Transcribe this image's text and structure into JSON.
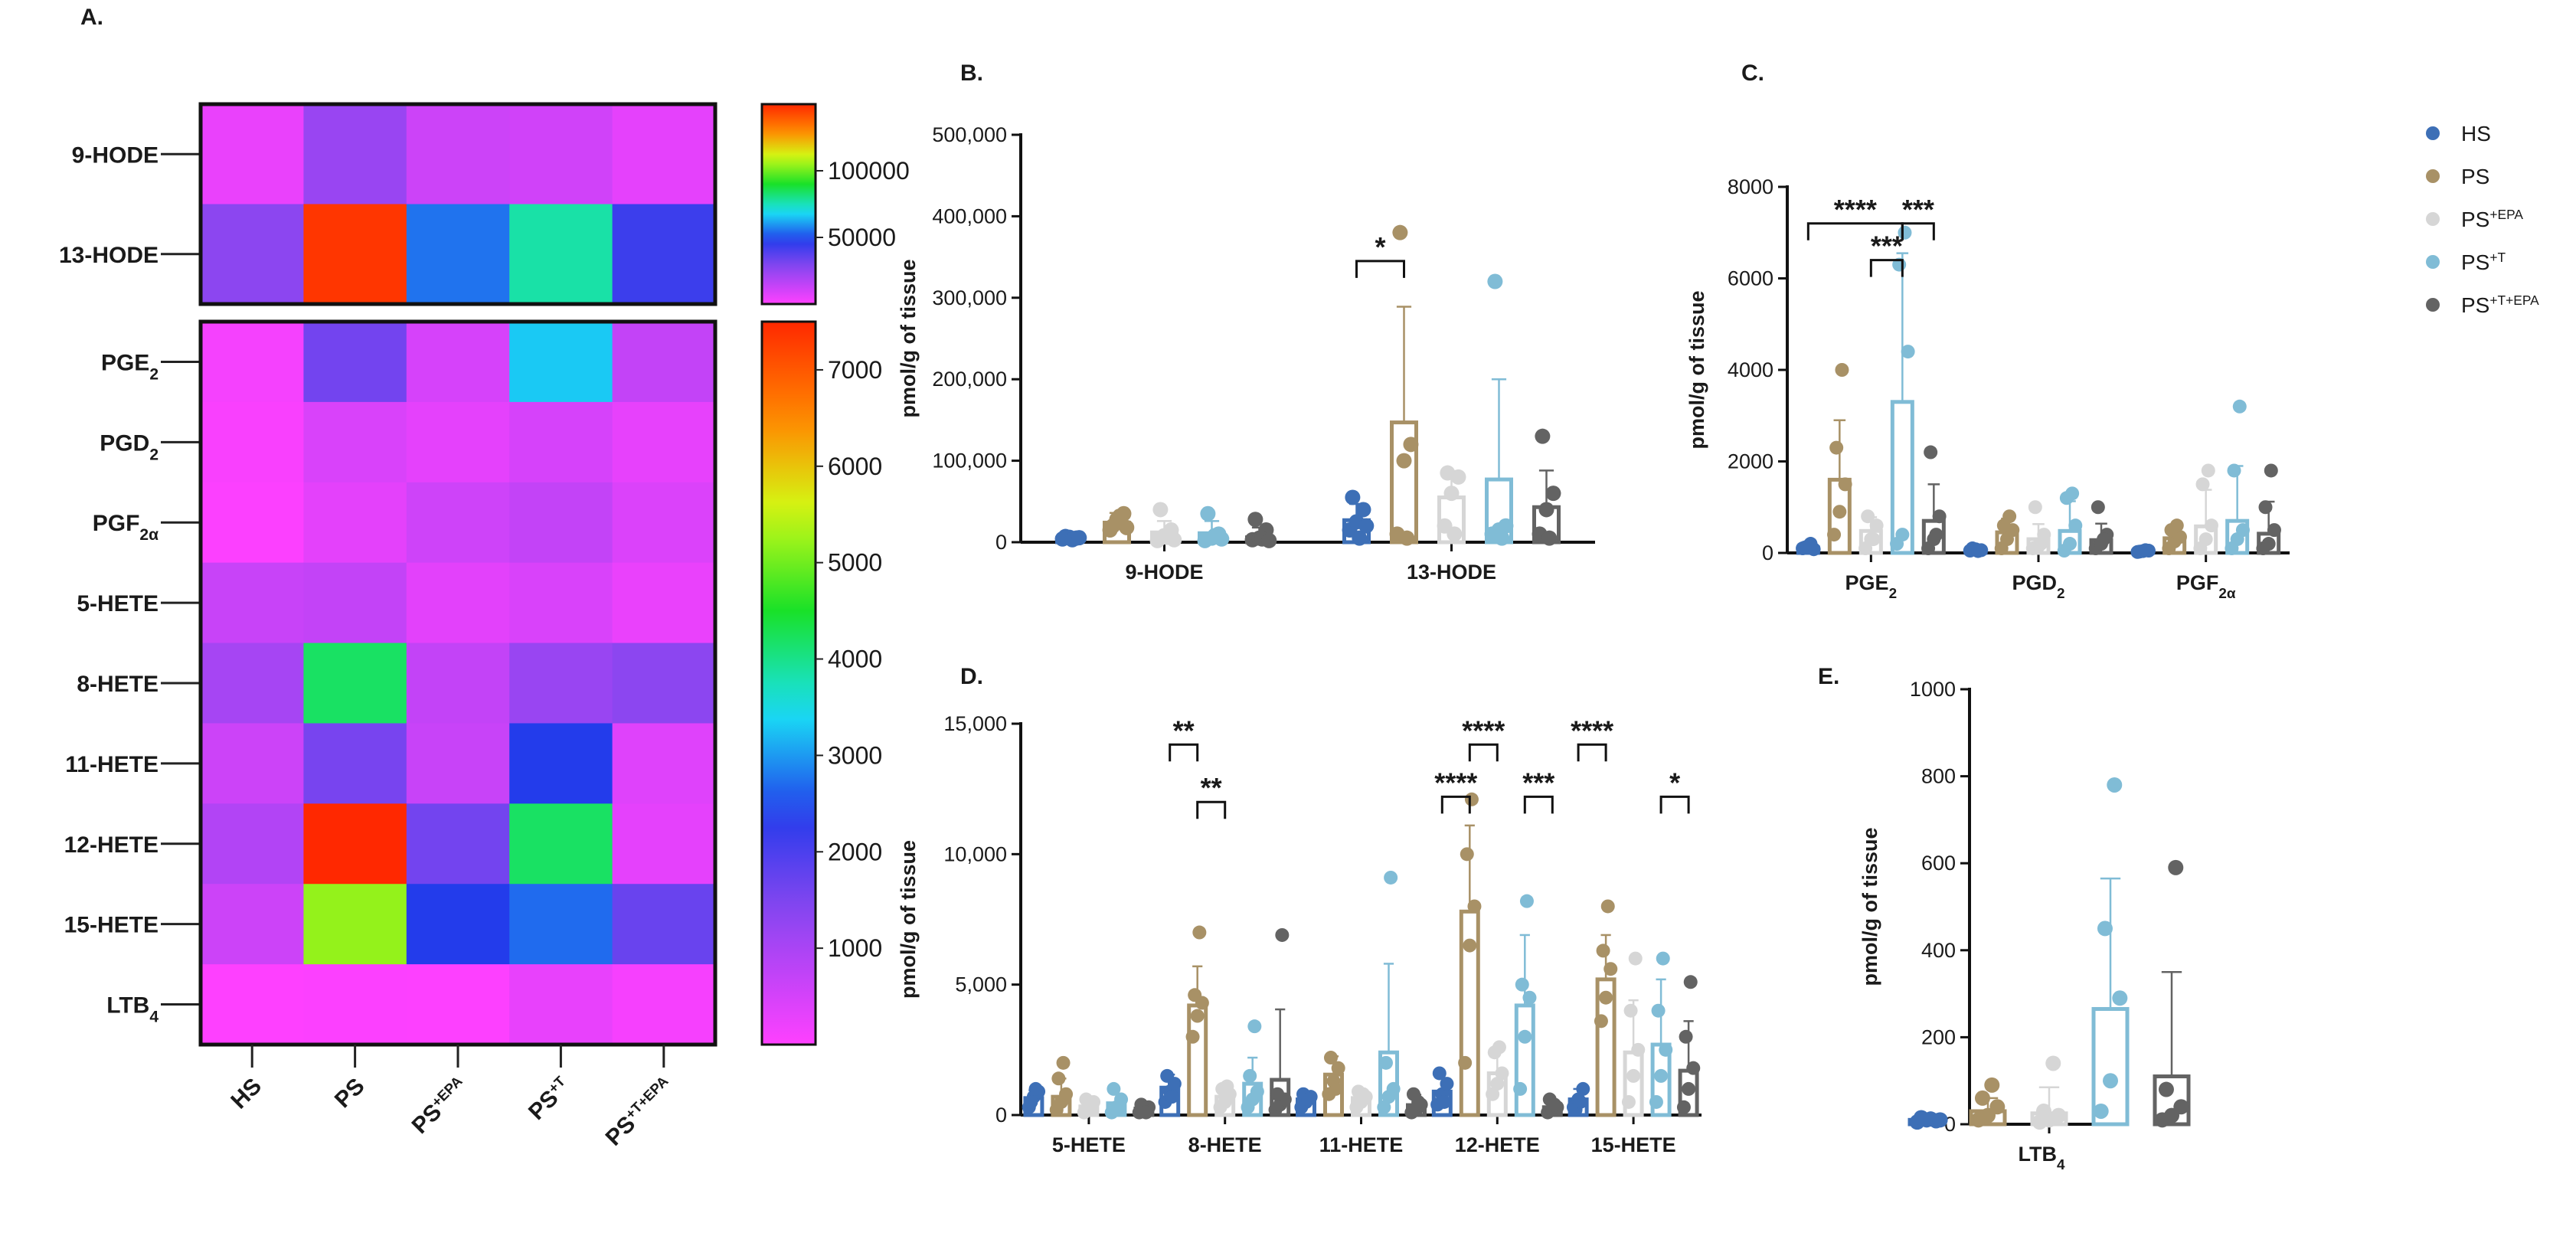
{
  "colors": {
    "HS": "#3d6fb6",
    "PS": "#a89166",
    "PS+EPA": "#d6d6d6",
    "PS+T": "#80bcd6",
    "PS+T+EPA": "#636363"
  },
  "groups": [
    {
      "key": "HS",
      "base": "HS",
      "sup": ""
    },
    {
      "key": "PS",
      "base": "PS",
      "sup": ""
    },
    {
      "key": "PS+EPA",
      "base": "PS",
      "sup": "+EPA"
    },
    {
      "key": "PS+T",
      "base": "PS",
      "sup": "+T"
    },
    {
      "key": "PS+T+EPA",
      "base": "PS",
      "sup": "+T+EPA"
    }
  ],
  "chart_data": [
    {
      "id": "A",
      "panel_label": "A.",
      "type": "heatmap",
      "columns": [
        "HS",
        "PS",
        "PS+EPA",
        "PS+T",
        "PS+T+EPA"
      ],
      "blocks": [
        {
          "rows": [
            {
              "base": "9-HODE",
              "sub": "",
              "values": [
                5000,
                24000,
                12000,
                11000,
                6000
              ]
            },
            {
              "base": "13-HODE",
              "sub": "",
              "values": [
                27000,
                147000,
                55000,
                77000,
                43000
              ]
            }
          ],
          "colorbar": {
            "min": 0,
            "max": 150000,
            "ticks": [
              {
                "value": 50000,
                "label": "50000"
              },
              {
                "value": 100000,
                "label": "100000"
              }
            ]
          }
        },
        {
          "rows": [
            {
              "base": "PGE",
              "sub": "2",
              "values": [
                120,
                1600,
                480,
                3300,
                700
              ]
            },
            {
              "base": "PGD",
              "sub": "2",
              "values": [
                70,
                450,
                300,
                480,
                280
              ]
            },
            {
              "base": "PGF",
              "sub": "2α",
              "values": [
                40,
                320,
                580,
                700,
                420
              ]
            },
            {
              "base": "5-HETE",
              "sub": "",
              "values": [
                650,
                700,
                330,
                450,
                250
              ]
            },
            {
              "base": "8-HETE",
              "sub": "",
              "values": [
                1050,
                4200,
                700,
                1200,
                1350
              ]
            },
            {
              "base": "11-HETE",
              "sub": "",
              "values": [
                600,
                1550,
                650,
                2400,
                380
              ]
            },
            {
              "base": "12-HETE",
              "sub": "",
              "values": [
                900,
                7800,
                1600,
                4200,
                300
              ]
            },
            {
              "base": "15-HETE",
              "sub": "",
              "values": [
                600,
                5200,
                2400,
                2700,
                1700
              ]
            },
            {
              "base": "LTB",
              "sub": "4",
              "values": [
                10,
                30,
                25,
                265,
                110
              ]
            }
          ],
          "colorbar": {
            "min": 0,
            "max": 7500,
            "ticks": [
              {
                "value": 1000,
                "label": "1000"
              },
              {
                "value": 2000,
                "label": "2000"
              },
              {
                "value": 3000,
                "label": "3000"
              },
              {
                "value": 4000,
                "label": "4000"
              },
              {
                "value": 5000,
                "label": "5000"
              },
              {
                "value": 6000,
                "label": "6000"
              },
              {
                "value": 7000,
                "label": "7000"
              }
            ]
          }
        }
      ]
    },
    {
      "id": "B",
      "panel_label": "B.",
      "type": "bar",
      "ylabel": "pmol/g of tissue",
      "ylim": [
        0,
        500000
      ],
      "yticks": [
        {
          "v": 0,
          "t": "0"
        },
        {
          "v": 100000,
          "t": "100,000"
        },
        {
          "v": 200000,
          "t": "200,000"
        },
        {
          "v": 300000,
          "t": "300,000"
        },
        {
          "v": 400000,
          "t": "400,000"
        },
        {
          "v": 500000,
          "t": "500,000"
        }
      ],
      "categories": [
        {
          "base": "9-HODE",
          "sub": "",
          "means": [
            5000,
            24000,
            12000,
            11000,
            6000
          ],
          "sd": [
            3000,
            12000,
            14000,
            15000,
            12000
          ],
          "points": [
            [
              4000,
              6000,
              5000,
              7000,
              3000,
              5500
            ],
            [
              15000,
              28000,
              35000,
              20000,
              32000,
              18000
            ],
            [
              2000,
              8000,
              15000,
              40000,
              6000,
              3000
            ],
            [
              2000,
              5000,
              10000,
              35000,
              8000,
              4000
            ],
            [
              3000,
              5000,
              15000,
              28000,
              4000,
              2000
            ]
          ]
        },
        {
          "base": "13-HODE",
          "sub": "",
          "means": [
            27000,
            147000,
            55000,
            77000,
            43000
          ],
          "sd": [
            20000,
            142000,
            32000,
            123000,
            45000
          ],
          "points": [
            [
              15000,
              25000,
              40000,
              55000,
              5000,
              20000
            ],
            [
              10000,
              100000,
              120000,
              380000,
              5000
            ],
            [
              20000,
              60000,
              80000,
              85000,
              10000
            ],
            [
              10000,
              15000,
              20000,
              320000,
              5000
            ],
            [
              10000,
              40000,
              60000,
              130000,
              5000
            ]
          ]
        }
      ],
      "significance": [
        {
          "cat": 1,
          "from": 0,
          "to": 1,
          "label": "*",
          "y": 345000
        }
      ]
    },
    {
      "id": "C",
      "panel_label": "C.",
      "type": "bar",
      "ylabel": "pmol/g of tissue",
      "ylim": [
        0,
        8000
      ],
      "yticks": [
        {
          "v": 0,
          "t": "0"
        },
        {
          "v": 2000,
          "t": "2000"
        },
        {
          "v": 4000,
          "t": "4000"
        },
        {
          "v": 6000,
          "t": "6000"
        },
        {
          "v": 8000,
          "t": "8000"
        }
      ],
      "categories": [
        {
          "base": "PGE",
          "sub": "2",
          "means": [
            120,
            1600,
            480,
            3300,
            700
          ],
          "sd": [
            60,
            1300,
            300,
            3250,
            800
          ],
          "points": [
            [
              100,
              150,
              80,
              120,
              200
            ],
            [
              400,
              900,
              1500,
              2300,
              4000
            ],
            [
              100,
              300,
              600,
              800,
              300
            ],
            [
              200,
              400,
              4400,
              6300,
              7000
            ],
            [
              100,
              300,
              800,
              2200,
              400
            ]
          ]
        },
        {
          "base": "PGD",
          "sub": "2",
          "means": [
            70,
            450,
            300,
            480,
            280
          ],
          "sd": [
            40,
            300,
            330,
            650,
            360
          ],
          "points": [
            [
              50,
              80,
              60,
              100,
              40
            ],
            [
              100,
              300,
              500,
              600,
              800
            ],
            [
              100,
              150,
              400,
              1000,
              200
            ],
            [
              50,
              200,
              600,
              1200,
              1300
            ],
            [
              100,
              200,
              400,
              1000,
              300
            ]
          ]
        },
        {
          "base": "PGF",
          "sub": "2α",
          "means": [
            40,
            320,
            580,
            700,
            420
          ],
          "sd": [
            20,
            250,
            800,
            1200,
            700
          ],
          "points": [
            [
              20,
              40,
              50,
              30,
              60
            ],
            [
              100,
              250,
              350,
              500,
              600
            ],
            [
              100,
              300,
              600,
              1500,
              1800
            ],
            [
              100,
              300,
              500,
              1800,
              3200
            ],
            [
              100,
              200,
              500,
              1000,
              1800
            ]
          ]
        }
      ],
      "significance": [
        {
          "cat": 0,
          "from": 0,
          "to": 3,
          "label": "****",
          "y": 7200
        },
        {
          "cat": 0,
          "from": 3,
          "to": 4,
          "label": "***",
          "y": 7200
        },
        {
          "cat": 0,
          "from": 2,
          "to": 3,
          "label": "***",
          "y": 6400
        }
      ],
      "legend": [
        {
          "key": "HS",
          "base": "HS",
          "sup": ""
        },
        {
          "key": "PS",
          "base": "PS",
          "sup": ""
        },
        {
          "key": "PS+EPA",
          "base": "PS",
          "sup": "+EPA"
        },
        {
          "key": "PS+T",
          "base": "PS",
          "sup": "+T"
        },
        {
          "key": "PS+T+EPA",
          "base": "PS",
          "sup": "+T+EPA"
        }
      ]
    },
    {
      "id": "D",
      "panel_label": "D.",
      "type": "bar",
      "ylabel": "pmol/g of tissue",
      "ylim": [
        0,
        15000
      ],
      "yticks": [
        {
          "v": 0,
          "t": "0"
        },
        {
          "v": 5000,
          "t": "5,000"
        },
        {
          "v": 10000,
          "t": "10,000"
        },
        {
          "v": 15000,
          "t": "15,000"
        }
      ],
      "categories": [
        {
          "base": "5-HETE",
          "sub": "",
          "means": [
            650,
            700,
            330,
            450,
            250
          ],
          "sd": [
            300,
            700,
            250,
            350,
            200
          ],
          "points": [
            [
              300,
              700,
              900,
              500,
              1000
            ],
            [
              200,
              500,
              800,
              1400,
              2000
            ],
            [
              100,
              300,
              500,
              600,
              200
            ],
            [
              100,
              300,
              600,
              1000,
              200
            ],
            [
              100,
              200,
              300,
              400,
              100
            ]
          ]
        },
        {
          "base": "8-HETE",
          "sub": "",
          "means": [
            1050,
            4200,
            700,
            1200,
            1350
          ],
          "sd": [
            500,
            1500,
            400,
            1000,
            2700
          ],
          "points": [
            [
              500,
              900,
              1200,
              1500,
              700
            ],
            [
              3000,
              3800,
              4300,
              4600,
              7000
            ],
            [
              300,
              500,
              800,
              1000,
              1100
            ],
            [
              300,
              600,
              900,
              1500,
              3400
            ],
            [
              200,
              400,
              600,
              800,
              6900
            ]
          ]
        },
        {
          "base": "11-HETE",
          "sub": "",
          "means": [
            600,
            1550,
            650,
            2400,
            380
          ],
          "sd": [
            300,
            700,
            300,
            3400,
            400
          ],
          "points": [
            [
              300,
              500,
              700,
              800,
              600
            ],
            [
              800,
              1300,
              1800,
              2200,
              1000
            ],
            [
              300,
              500,
              700,
              900,
              800
            ],
            [
              300,
              700,
              1000,
              2000,
              9100
            ],
            [
              100,
              200,
              400,
              800,
              500
            ]
          ]
        },
        {
          "base": "12-HETE",
          "sub": "",
          "means": [
            900,
            7800,
            1600,
            4200,
            300
          ],
          "sd": [
            500,
            3300,
            900,
            2700,
            250
          ],
          "points": [
            [
              400,
              800,
              1200,
              1600,
              500
            ],
            [
              2000,
              6500,
              8000,
              10000,
              12100
            ],
            [
              800,
              1200,
              1600,
              2400,
              2600
            ],
            [
              1000,
              3000,
              4500,
              5000,
              8200
            ],
            [
              100,
              200,
              300,
              600,
              400
            ]
          ]
        },
        {
          "base": "15-HETE",
          "sub": "",
          "means": [
            600,
            5200,
            2400,
            2700,
            1700
          ],
          "sd": [
            400,
            1700,
            2000,
            2500,
            1900
          ],
          "points": [
            [
              300,
              600,
              1000,
              200,
              500
            ],
            [
              3600,
              4500,
              5600,
              6300,
              8000
            ],
            [
              500,
              1500,
              2500,
              4000,
              6000
            ],
            [
              500,
              1500,
              2500,
              4000,
              6000
            ],
            [
              300,
              1000,
              1800,
              3000,
              5100
            ]
          ]
        }
      ],
      "significance": [
        {
          "cat": 1,
          "from": 0,
          "to": 1,
          "label": "**",
          "y": 14200
        },
        {
          "cat": 1,
          "from": 1,
          "to": 2,
          "label": "**",
          "y": 12000
        },
        {
          "cat": 3,
          "from": 0,
          "to": 1,
          "label": "****",
          "y": 12200
        },
        {
          "cat": 3,
          "from": 1,
          "to": 2,
          "label": "****",
          "y": 14200
        },
        {
          "cat": 3,
          "from": 3,
          "to": 4,
          "label": "***",
          "y": 12200
        },
        {
          "cat": 4,
          "from": 0,
          "to": 1,
          "label": "****",
          "y": 14200
        },
        {
          "cat": 4,
          "from": 3,
          "to": 4,
          "label": "*",
          "y": 12200
        }
      ]
    },
    {
      "id": "E",
      "panel_label": "E.",
      "type": "bar",
      "ylabel": "pmol/g of tissue",
      "ylim": [
        0,
        1000
      ],
      "yticks": [
        {
          "v": 0,
          "t": "0"
        },
        {
          "v": 200,
          "t": "200"
        },
        {
          "v": 400,
          "t": "400"
        },
        {
          "v": 600,
          "t": "600"
        },
        {
          "v": 800,
          "t": "800"
        },
        {
          "v": 1000,
          "t": "1000"
        }
      ],
      "categories": [
        {
          "base": "LTB",
          "sub": "4",
          "means": [
            10,
            30,
            25,
            265,
            110
          ],
          "sd": [
            5,
            30,
            60,
            300,
            240
          ],
          "points": [
            [
              5,
              10,
              8,
              15,
              12,
              10
            ],
            [
              10,
              20,
              40,
              60,
              90
            ],
            [
              5,
              10,
              20,
              30,
              140
            ],
            [
              30,
              100,
              290,
              450,
              780
            ],
            [
              10,
              20,
              40,
              80,
              590
            ]
          ]
        }
      ],
      "significance": []
    }
  ]
}
